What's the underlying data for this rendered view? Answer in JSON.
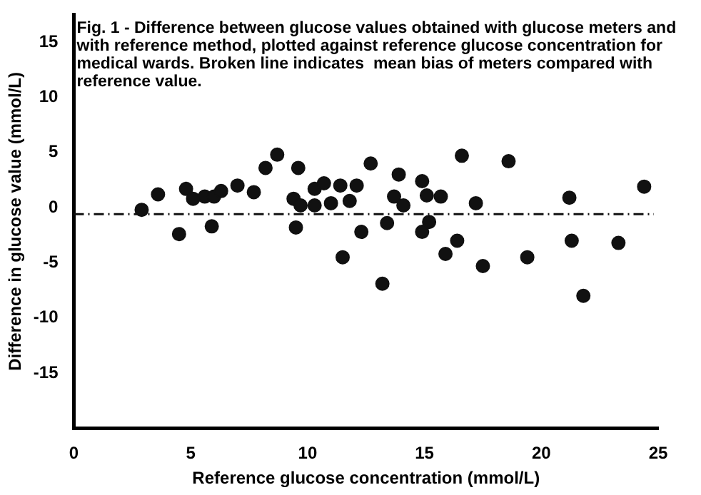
{
  "chart_data": {
    "type": "scatter",
    "xlabel": "Reference glucose concentration (mmol/L)",
    "ylabel": "Difference in glucose value (mmol/L)",
    "annotations": [
      "Fig. 1 - Difference between glucose values obtained with glucose meters and with reference method, plotted against reference glucose concentration for medical wards. Broken line indicates  mean bias of meters compared with reference value."
    ],
    "x": [
      2.9,
      3.6,
      4.5,
      4.8,
      5.1,
      5.6,
      5.9,
      6.0,
      6.3,
      7.0,
      7.7,
      8.2,
      8.7,
      9.4,
      9.6,
      9.5,
      9.7,
      10.3,
      10.3,
      10.7,
      11.0,
      11.4,
      11.5,
      11.8,
      12.1,
      12.3,
      12.7,
      13.2,
      13.4,
      13.7,
      13.9,
      14.1,
      14.9,
      15.1,
      15.2,
      14.9,
      15.7,
      16.4,
      15.9,
      16.6,
      17.2,
      17.5,
      18.6,
      19.4,
      21.2,
      21.3,
      21.8,
      23.3,
      24.4
    ],
    "series": [
      {
        "color": "#111111",
        "values": [
          -0.2,
          1.2,
          -2.4,
          1.7,
          0.8,
          1.0,
          -1.7,
          1.0,
          1.5,
          2.0,
          1.4,
          3.6,
          4.8,
          0.8,
          3.6,
          -1.8,
          0.2,
          1.7,
          0.2,
          2.2,
          0.4,
          2.0,
          -4.5,
          0.6,
          2.0,
          -2.2,
          4.0,
          -6.9,
          -1.4,
          1.0,
          3.0,
          0.2,
          2.4,
          1.1,
          -1.3,
          -2.2,
          1.0,
          -3.0,
          -4.2,
          4.7,
          0.4,
          -5.3,
          4.2,
          -4.5,
          0.9,
          -3.0,
          -8.0,
          -3.2,
          1.9
        ]
      }
    ],
    "xlim": [
      0,
      25
    ],
    "xticks": [
      0,
      5,
      10,
      15,
      20,
      25
    ],
    "ylim": [
      -20,
      17.5
    ],
    "yticks": [
      -15,
      -10,
      -5,
      0,
      5,
      10,
      15
    ],
    "ref_lines": [
      {
        "axis": "y",
        "value": -0.6,
        "color": "#111111",
        "line_style": "dashed"
      }
    ],
    "grid": false,
    "legend": false,
    "marker": "circle"
  }
}
